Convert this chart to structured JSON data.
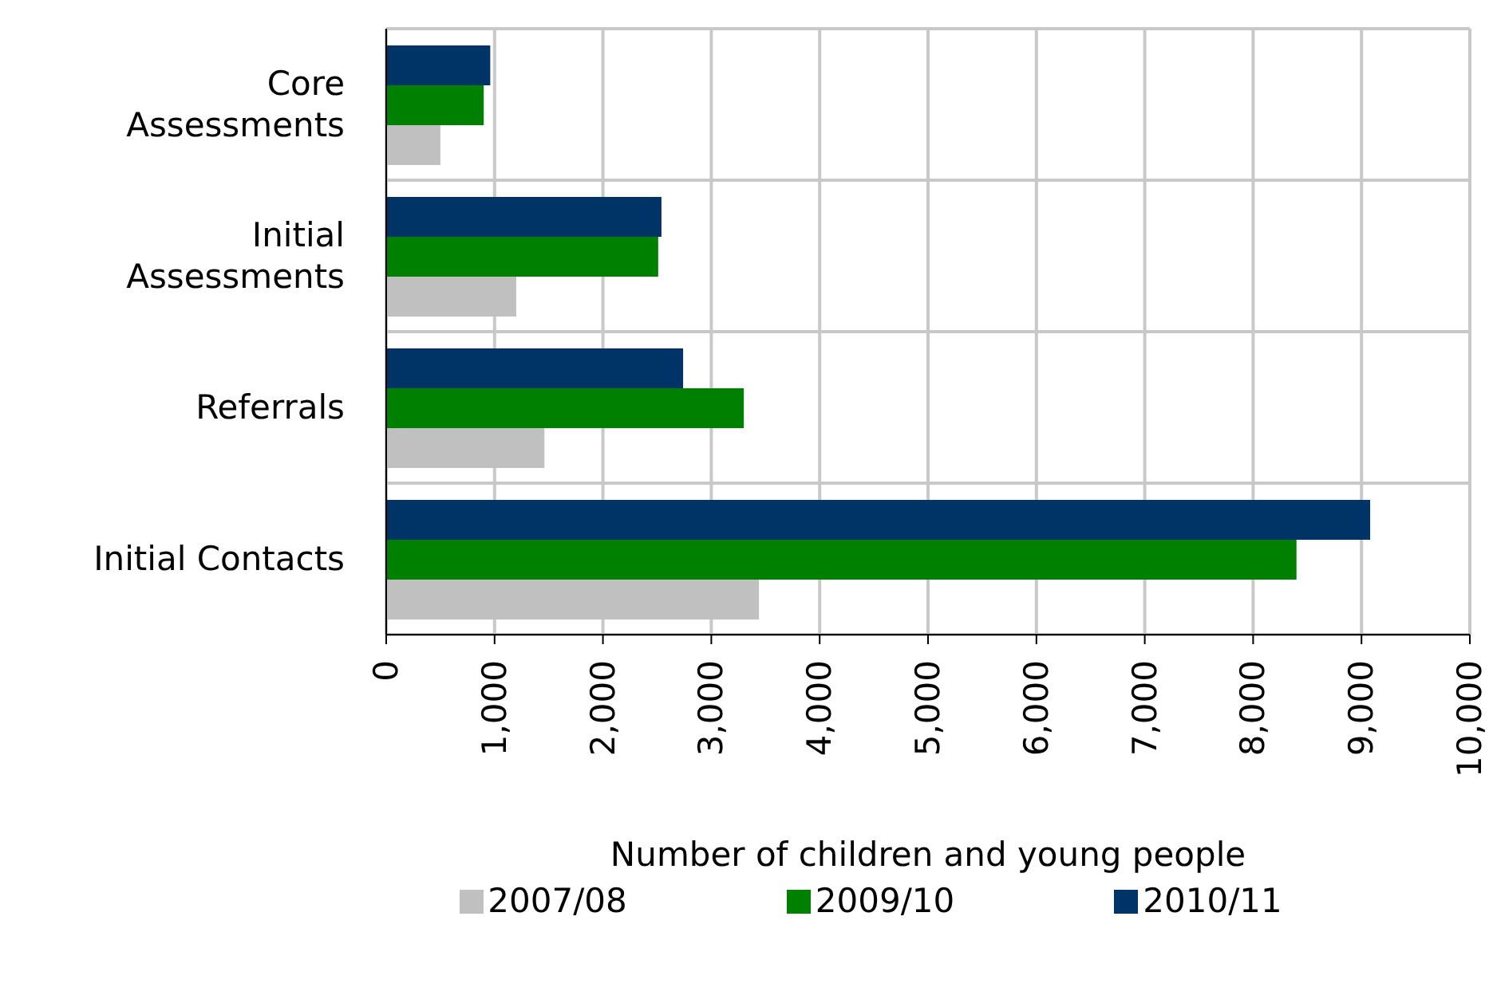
{
  "chart_data": {
    "type": "bar",
    "orientation": "horizontal",
    "xlabel": "Number of children and young people",
    "categories": [
      "Core Assessments",
      "Initial Assessments",
      "Referrals",
      "Initial Contacts"
    ],
    "series": [
      {
        "name": "2007/08",
        "color": "#c0c0c0",
        "values": [
          500,
          1200,
          1460,
          3440
        ]
      },
      {
        "name": "2009/10",
        "color": "#008000",
        "values": [
          900,
          2510,
          3300,
          8400
        ]
      },
      {
        "name": "2010/11",
        "color": "#003366",
        "values": [
          960,
          2540,
          2740,
          9080
        ]
      }
    ],
    "xlim": [
      0,
      10000
    ],
    "xticks": [
      0,
      {
        "value": 1000,
        "label": "1,000"
      },
      {
        "value": 2000,
        "label": "2,000"
      },
      {
        "value": 3000,
        "label": "3,000"
      },
      {
        "value": 4000,
        "label": "4,000"
      },
      {
        "value": 5000,
        "label": "5,000"
      },
      {
        "value": 6000,
        "label": "6,000"
      },
      {
        "value": 7000,
        "label": "7,000"
      },
      {
        "value": 8000,
        "label": "8,000"
      },
      {
        "value": 9000,
        "label": "9,000"
      },
      {
        "value": 10000,
        "label": "10,000"
      }
    ],
    "grid": true,
    "legend": "bottom"
  }
}
